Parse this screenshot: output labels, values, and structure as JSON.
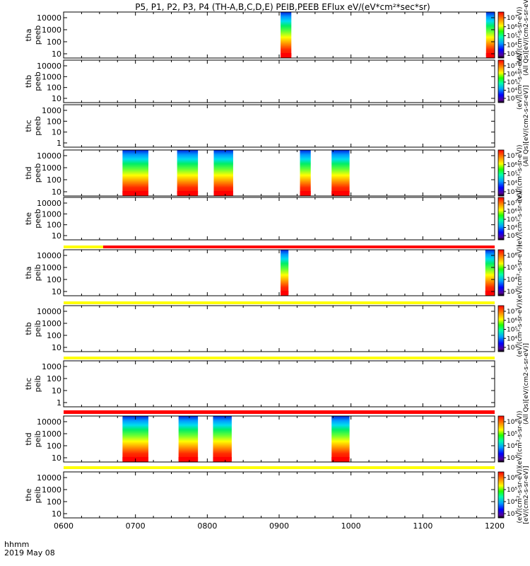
{
  "chart_data": {
    "type": "heatmap",
    "title": "P5, P1, P2, P3, P4 (TH-A,B,C,D,E) PEIB,PEEB EFlux eV/(eV*cm²*sec*sr)",
    "x_ticks": [
      "0600",
      "0700",
      "0800",
      "0900",
      "1000",
      "1100",
      "1200"
    ],
    "x_range_hours": [
      6,
      12
    ],
    "x_caption": "hhmm",
    "x_date": "2019 May 08",
    "panels": [
      {
        "ylabel1": "tha",
        "ylabel2": "peeb",
        "yticks": [
          "10000",
          "1000",
          "100",
          "10"
        ],
        "blocks": [
          [
            9.02,
            9.17
          ],
          [
            11.88,
            12.0
          ]
        ],
        "colorbar": {
          "ticks": [
            "10⁷",
            "10⁶",
            "10⁵",
            "10⁴",
            "10³"
          ],
          "label": "(eV/(cm²-s-sr-eV))"
        },
        "side_label": "(All Qs)[eV/(cm2-s-sr-eV)]"
      },
      {
        "ylabel1": "thb",
        "ylabel2": "peeb",
        "yticks": [
          "10000",
          "1000",
          "100",
          "10"
        ],
        "blocks": [],
        "colorbar": {
          "ticks": [
            "10⁷",
            "10⁶",
            "10⁵",
            "10⁴",
            "10³"
          ],
          "label": "(eV/(cm²-s-sr-eV))"
        },
        "side_label": ""
      },
      {
        "ylabel1": "thc",
        "ylabel2": "peeb",
        "yticks": [
          "1000",
          "100",
          "10",
          "1"
        ],
        "blocks": [],
        "colorbar": null,
        "side_label": "(All Qs)[eV/(cm2-s-sr-eV)]"
      },
      {
        "ylabel1": "thd",
        "ylabel2": "peeb",
        "yticks": [
          "10000",
          "1000",
          "100",
          "10"
        ],
        "blocks": [
          [
            6.82,
            7.18
          ],
          [
            7.58,
            7.87
          ],
          [
            8.09,
            8.36
          ],
          [
            9.29,
            9.44
          ],
          [
            9.73,
            9.98
          ]
        ],
        "colorbar": {
          "ticks": [
            "10⁷",
            "10⁶",
            "10⁵",
            "10⁴",
            "10³"
          ],
          "label": "(eV/(cm²-s-sr-eV))"
        },
        "side_label": ""
      },
      {
        "ylabel1": "the",
        "ylabel2": "peeb",
        "yticks": [
          "10000",
          "1000",
          "100",
          "10"
        ],
        "blocks": [],
        "colorbar": {
          "ticks": [
            "10⁷",
            "10⁶",
            "10⁵",
            "10⁴",
            "10³"
          ],
          "label": "(eV/(cm²-s-sr-eV))"
        },
        "side_label": ""
      },
      {
        "ylabel1": "tha",
        "ylabel2": "peib",
        "yticks": [
          "10000",
          "1000",
          "100",
          "10"
        ],
        "blocks": [
          [
            9.02,
            9.13
          ],
          [
            11.87,
            12.0
          ]
        ],
        "colorbar": {
          "ticks": [
            "10⁶",
            "10⁵",
            "10⁴",
            "10³"
          ],
          "label": "(eV/(cm²-s-sr-eV))"
        },
        "side_label": ""
      },
      {
        "ylabel1": "thb",
        "ylabel2": "peib",
        "yticks": [
          "10000",
          "1000",
          "100",
          "10"
        ],
        "blocks": [],
        "colorbar": {
          "ticks": [
            "10⁷",
            "10⁶",
            "10⁵",
            "10⁴",
            "10³"
          ],
          "label": "(eV/(cm²-s-sr-eV))"
        },
        "side_label": ""
      },
      {
        "ylabel1": "thc",
        "ylabel2": "peib",
        "yticks": [
          "1000",
          "100",
          "10",
          "1"
        ],
        "blocks": [],
        "colorbar": null,
        "side_label": "(All Qs)[eV/(cm2-s-sr-eV)]"
      },
      {
        "ylabel1": "thd",
        "ylabel2": "peib",
        "yticks": [
          "10000",
          "1000",
          "100",
          "10"
        ],
        "blocks": [
          [
            6.82,
            7.18
          ],
          [
            7.6,
            7.87
          ],
          [
            8.08,
            8.34
          ],
          [
            9.73,
            9.98
          ]
        ],
        "colorbar": {
          "ticks": [
            "10⁶",
            "10⁵",
            "10⁴",
            "10³"
          ],
          "label": "(eV/(cm²-s-sr-eV))"
        },
        "side_label": ""
      },
      {
        "ylabel1": "the",
        "ylabel2": "peib",
        "yticks": [
          "10000",
          "1000",
          "100",
          "10"
        ],
        "blocks": [],
        "colorbar": {
          "ticks": [
            "10⁶",
            "10⁵",
            "10⁴",
            "10³"
          ],
          "label": "(eV/(cm²-s-sr-eV))"
        },
        "side_label": "[eV/(cm2-s-sr-eV)]"
      }
    ],
    "status_bars": [
      {
        "after_panel": 4,
        "segments": [
          {
            "color": "#ffff00",
            "from": 6.0,
            "to": 6.55
          },
          {
            "color": "#ff0000",
            "from": 6.55,
            "to": 12.0
          }
        ]
      },
      {
        "after_panel": 5,
        "segments": [
          {
            "color": "#ffff00",
            "from": 6.0,
            "to": 12.0
          }
        ]
      },
      {
        "after_panel": 6,
        "segments": [
          {
            "color": "#ffff00",
            "from": 6.0,
            "to": 12.0
          }
        ]
      },
      {
        "after_panel": 7,
        "segments": [
          {
            "color": "#ff0000",
            "from": 6.0,
            "to": 12.0
          }
        ]
      },
      {
        "after_panel": 8,
        "segments": [
          {
            "color": "#ffff00",
            "from": 6.0,
            "to": 12.0
          }
        ]
      }
    ]
  }
}
